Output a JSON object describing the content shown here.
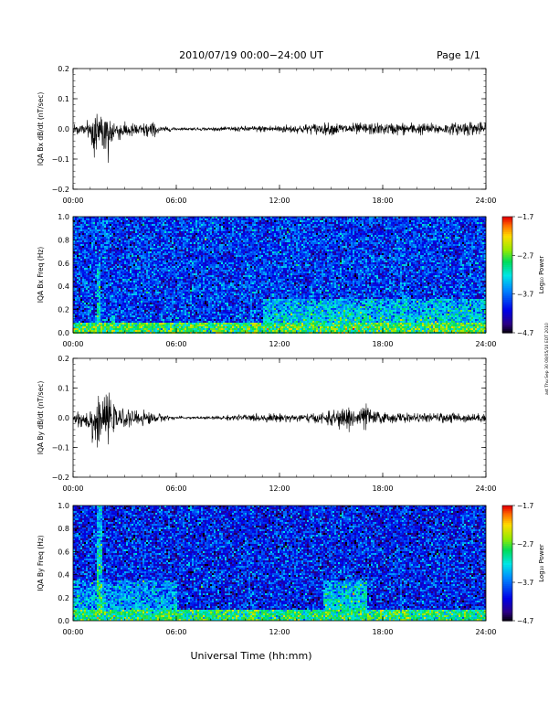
{
  "header": {
    "title": "2010/07/19  00:00−24:00 UT",
    "page": "Page 1/1"
  },
  "footer": {
    "xlabel": "Universal Time (hh:mm)"
  },
  "side_note": "ast Thu Sep 30 08/05/10 EDT 2010",
  "colorbar": {
    "label": "Log₁₀ Power",
    "ticks": [
      -1.7,
      -2.7,
      -3.7,
      -4.7
    ],
    "tick_labels": [
      "−1.7",
      "−2.7",
      "−3.7",
      "−4.7"
    ],
    "range": [
      -4.7,
      -1.7
    ]
  },
  "chart_data": [
    {
      "type": "line",
      "name": "bx-timeseries",
      "ylabel": "IQA Bx dB/dt (nT/sec)",
      "xlim": [
        0,
        24
      ],
      "x_tick_labels": [
        "00:00",
        "06:00",
        "12:00",
        "18:00",
        "24:00"
      ],
      "ylim": [
        -0.2,
        0.2
      ],
      "y_ticks": [
        0.2,
        0.1,
        0.0,
        -0.1,
        -0.2
      ],
      "y_tick_labels": [
        "0.2",
        "0.1",
        "0.0",
        "−0.1",
        "−0.2"
      ],
      "envelope": {
        "hours": [
          0,
          0.5,
          1.0,
          1.3,
          1.5,
          1.7,
          2.0,
          2.3,
          2.6,
          3.0,
          3.5,
          4.0,
          4.5,
          5.0,
          6.0,
          7.0,
          8.0,
          9.0,
          10.0,
          11.0,
          12.0,
          13.0,
          14.0,
          15.0,
          16.0,
          17.0,
          18.0,
          19.0,
          20.0,
          21.0,
          22.0,
          23.0,
          24.0
        ],
        "upper": [
          0.015,
          0.02,
          0.035,
          0.1,
          0.07,
          0.05,
          0.09,
          0.04,
          0.03,
          0.025,
          0.02,
          0.02,
          0.03,
          0.01,
          0.005,
          0.005,
          0.005,
          0.008,
          0.01,
          0.012,
          0.015,
          0.015,
          0.02,
          0.022,
          0.02,
          0.022,
          0.02,
          0.022,
          0.022,
          0.02,
          0.02,
          0.03,
          0.02
        ],
        "lower": [
          -0.02,
          -0.02,
          -0.05,
          -0.15,
          -0.1,
          -0.06,
          -0.16,
          -0.05,
          -0.04,
          -0.035,
          -0.03,
          -0.03,
          -0.04,
          -0.015,
          -0.005,
          -0.005,
          -0.006,
          -0.008,
          -0.01,
          -0.012,
          -0.015,
          -0.016,
          -0.02,
          -0.022,
          -0.02,
          -0.022,
          -0.02,
          -0.022,
          -0.022,
          -0.02,
          -0.02,
          -0.025,
          -0.02
        ]
      }
    },
    {
      "type": "heatmap",
      "name": "bx-spectrogram",
      "ylabel": "IQA Bx Freq (Hz)",
      "xlim": [
        0,
        24
      ],
      "x_tick_labels": [
        "00:00",
        "06:00",
        "12:00",
        "18:00",
        "24:00"
      ],
      "ylim": [
        0,
        1.0
      ],
      "y_ticks": [
        1.0,
        0.8,
        0.6,
        0.4,
        0.2,
        0.0
      ],
      "y_tick_labels": [
        "1.0",
        "0.8",
        "0.6",
        "0.4",
        "0.2",
        "0.0"
      ],
      "zlabel": "Log₁₀ Power",
      "zlim": [
        -4.7,
        -1.7
      ],
      "background_power": -3.9,
      "features": [
        {
          "kind": "low-frequency band",
          "hours": [
            0,
            24
          ],
          "freq_max_hz": 0.1,
          "power": -2.8
        },
        {
          "kind": "broadband enhancement",
          "hours": [
            11,
            24
          ],
          "freq_max_hz": 0.3,
          "power": -3.1
        },
        {
          "kind": "vertical streak",
          "hours": [
            1.3,
            1.5
          ],
          "freq_max_hz": 0.6,
          "power": -2.9
        },
        {
          "kind": "vertical streak",
          "hours": [
            2.2,
            2.4
          ],
          "freq_max_hz": 0.15,
          "power": -2.6
        }
      ]
    },
    {
      "type": "line",
      "name": "by-timeseries",
      "ylabel": "IQA By dB/dt (nT/sec)",
      "xlim": [
        0,
        24
      ],
      "x_tick_labels": [
        "00:00",
        "06:00",
        "12:00",
        "18:00",
        "24:00"
      ],
      "ylim": [
        -0.2,
        0.2
      ],
      "y_ticks": [
        0.2,
        0.1,
        0.0,
        -0.1,
        -0.2
      ],
      "y_tick_labels": [
        "0.2",
        "0.1",
        "0.0",
        "−0.1",
        "−0.2"
      ],
      "envelope": {
        "hours": [
          0,
          0.5,
          1.0,
          1.3,
          1.5,
          1.7,
          2.0,
          2.3,
          2.6,
          3.0,
          3.5,
          4.0,
          4.5,
          5.0,
          6.0,
          7.0,
          8.0,
          9.0,
          10.0,
          11.0,
          12.0,
          13.0,
          14.0,
          15.0,
          15.5,
          16.0,
          16.5,
          17.0,
          17.5,
          18.0,
          19.0,
          20.0,
          21.0,
          22.0,
          23.0,
          24.0
        ],
        "upper": [
          0.02,
          0.03,
          0.04,
          0.1,
          0.07,
          0.05,
          0.1,
          0.05,
          0.03,
          0.03,
          0.025,
          0.03,
          0.02,
          0.015,
          0.005,
          0.005,
          0.005,
          0.01,
          0.012,
          0.015,
          0.015,
          0.015,
          0.015,
          0.025,
          0.03,
          0.05,
          0.03,
          0.05,
          0.025,
          0.02,
          0.018,
          0.015,
          0.015,
          0.02,
          0.015,
          0.015
        ],
        "lower": [
          -0.02,
          -0.04,
          -0.05,
          -0.14,
          -0.09,
          -0.06,
          -0.1,
          -0.05,
          -0.04,
          -0.035,
          -0.03,
          -0.03,
          -0.025,
          -0.015,
          -0.005,
          -0.005,
          -0.006,
          -0.01,
          -0.012,
          -0.015,
          -0.015,
          -0.016,
          -0.018,
          -0.03,
          -0.04,
          -0.05,
          -0.035,
          -0.045,
          -0.025,
          -0.02,
          -0.018,
          -0.015,
          -0.015,
          -0.02,
          -0.015,
          -0.015
        ]
      }
    },
    {
      "type": "heatmap",
      "name": "by-spectrogram",
      "ylabel": "IQA By Freq (Hz)",
      "xlim": [
        0,
        24
      ],
      "x_tick_labels": [
        "00:00",
        "06:00",
        "12:00",
        "18:00",
        "24:00"
      ],
      "ylim": [
        0,
        1.0
      ],
      "y_ticks": [
        1.0,
        0.8,
        0.6,
        0.4,
        0.2,
        0.0
      ],
      "y_tick_labels": [
        "1.0",
        "0.8",
        "0.6",
        "0.4",
        "0.2",
        "0.0"
      ],
      "zlabel": "Log₁₀ Power",
      "zlim": [
        -4.7,
        -1.7
      ],
      "background_power": -4.0,
      "features": [
        {
          "kind": "low-frequency band",
          "hours": [
            0,
            24
          ],
          "freq_max_hz": 0.1,
          "power": -2.9
        },
        {
          "kind": "vertical streak",
          "hours": [
            1.3,
            1.6
          ],
          "freq_max_hz": 1.0,
          "power": -3.0
        },
        {
          "kind": "enhancement",
          "hours": [
            0,
            6
          ],
          "freq_max_hz": 0.35,
          "power": -3.3
        },
        {
          "kind": "enhancement",
          "hours": [
            14.5,
            17
          ],
          "freq_max_hz": 0.35,
          "power": -3.0
        }
      ]
    }
  ]
}
